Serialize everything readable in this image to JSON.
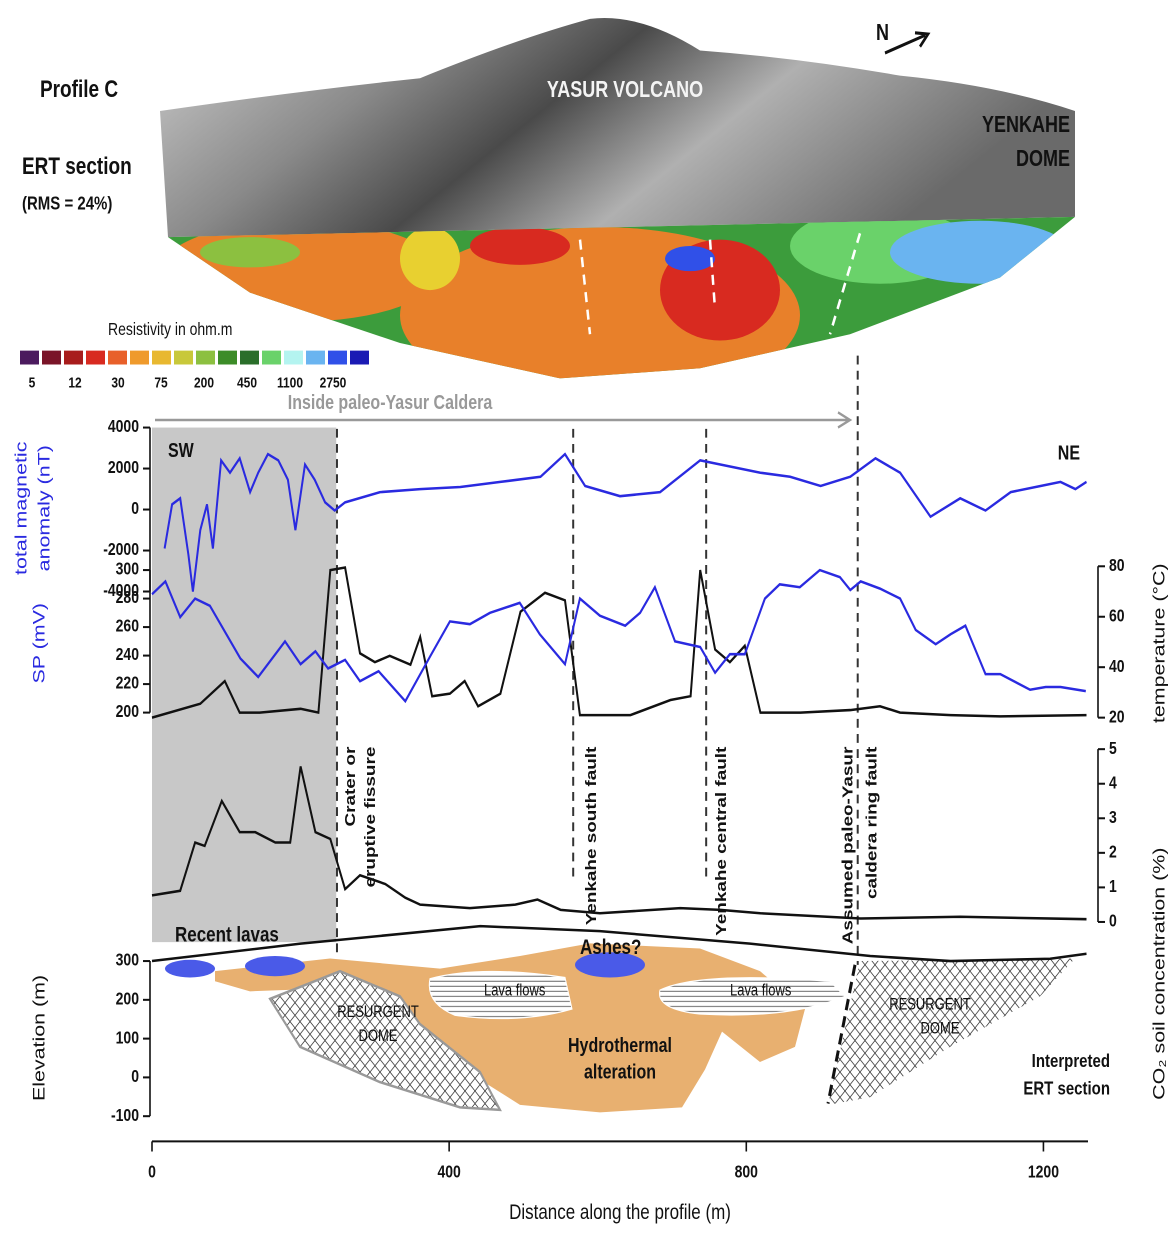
{
  "header": {
    "profile": "Profile C",
    "ert_section": "ERT section",
    "rms": "(RMS = 24%)",
    "volcano": "YASUR VOLCANO",
    "dome": [
      "YENKAHE",
      "DOME"
    ],
    "north": "N",
    "caldera": "Inside paleo-Yasur Caldera",
    "sw": "SW",
    "ne": "NE"
  },
  "colorbar": {
    "title": "Resistivity in ohm.m",
    "ticks": [
      5,
      12,
      30,
      75,
      200,
      450,
      1100,
      2750
    ],
    "colors": [
      "#4b1a5e",
      "#7a1428",
      "#a81c1c",
      "#d82a20",
      "#e8602a",
      "#ef9a2c",
      "#e8b830",
      "#c8c83a",
      "#8cc040",
      "#3c8c28",
      "#2a6e2a",
      "#6ad26a",
      "#b4f4f0",
      "#6ab4f0",
      "#3050e8",
      "#1a1ab4"
    ]
  },
  "shaded_region": [
    0,
    248
  ],
  "faults": [
    {
      "x": 249,
      "label": [
        "Crater or",
        "eruptive fissure"
      ]
    },
    {
      "x": 567,
      "label": [
        "Yenkahe south fault"
      ]
    },
    {
      "x": 746,
      "label": [
        "Yenkahe central fault"
      ]
    },
    {
      "x": 950,
      "label": [
        "Assumed paleo-Yasur",
        "caldera ring fault"
      ]
    }
  ],
  "section_labels": {
    "recent_lavas": "Recent lavas",
    "ashes": "Ashes?",
    "lava_flows": [
      "Lava flows",
      "Lava flows"
    ],
    "resurgent_dome": [
      [
        "RESURGENT",
        "DOME"
      ],
      [
        "RESURGENT",
        "DOME"
      ]
    ],
    "alteration": [
      "Hydrothermal",
      "alteration"
    ],
    "interpreted": [
      "Interpreted",
      "ERT section"
    ]
  },
  "chart_data": [
    {
      "type": "line",
      "ylabel": [
        "total magnetic",
        "anomaly (nT)"
      ],
      "axis_side": "left",
      "color": "#2a2ae0",
      "xlim": [
        0,
        1260
      ],
      "ylim": [
        -4000,
        4000
      ],
      "yticks": [
        -4000,
        -2000,
        0,
        2000,
        4000
      ],
      "x": [
        17,
        27,
        38,
        49,
        55,
        65,
        74,
        82,
        93,
        105,
        118,
        132,
        143,
        156,
        170,
        183,
        193,
        206,
        219,
        233,
        246,
        260,
        307,
        361,
        415,
        469,
        523,
        556,
        583,
        630,
        684,
        738,
        765,
        819,
        859,
        900,
        940,
        974,
        1007,
        1048,
        1088,
        1122,
        1156,
        1196,
        1223,
        1243,
        1258
      ],
      "values": [
        -1900,
        250,
        550,
        -2200,
        -4000,
        -1000,
        250,
        -1900,
        2400,
        1800,
        2500,
        850,
        1800,
        2700,
        2400,
        1450,
        -1000,
        2200,
        1450,
        350,
        -50,
        350,
        850,
        1000,
        1100,
        1350,
        1600,
        2700,
        1150,
        650,
        850,
        2400,
        2200,
        1800,
        1600,
        1150,
        1600,
        2500,
        1800,
        -350,
        550,
        -50,
        850,
        1150,
        1350,
        1000,
        1350
      ]
    },
    {
      "type": "line",
      "ylabel": "temperature (°C)",
      "axis_side": "right",
      "color": "#111111",
      "xlim": [
        0,
        1260
      ],
      "ylim": [
        20,
        80
      ],
      "yticks": [
        20,
        40,
        60,
        80
      ],
      "x": [
        0,
        65,
        98,
        118,
        145,
        200,
        224,
        240,
        260,
        280,
        300,
        320,
        348,
        361,
        377,
        401,
        421,
        439,
        469,
        496,
        529,
        556,
        576,
        644,
        698,
        725,
        738,
        758,
        778,
        798,
        819,
        873,
        940,
        980,
        1007,
        1075,
        1142,
        1258
      ],
      "values": [
        20,
        25.5,
        34.5,
        22,
        22,
        23.5,
        22,
        78.5,
        79.5,
        45.5,
        42,
        44.5,
        41,
        52,
        28.5,
        29.5,
        34.5,
        24.5,
        29.5,
        62,
        69.5,
        66.5,
        21,
        21,
        27,
        28.5,
        78.5,
        47,
        42,
        48.5,
        22,
        22,
        23,
        24.5,
        22,
        21,
        20.5,
        21
      ]
    },
    {
      "type": "line",
      "ylabel": "SP (mV)",
      "axis_side": "left",
      "color": "#2a2ae0",
      "xlim": [
        0,
        1260
      ],
      "ylim": [
        200,
        300
      ],
      "yticks": [
        200,
        220,
        240,
        260,
        280,
        300
      ],
      "x": [
        0,
        18,
        38,
        58,
        78,
        119,
        143,
        179,
        200,
        220,
        237,
        260,
        280,
        305,
        341,
        375,
        401,
        428,
        455,
        495,
        522,
        556,
        576,
        603,
        637,
        657,
        677,
        704,
        738,
        758,
        778,
        798,
        825,
        845,
        872,
        899,
        926,
        940,
        954,
        980,
        1007,
        1028,
        1055,
        1075,
        1095,
        1122,
        1142,
        1182,
        1203,
        1223,
        1257
      ],
      "values": [
        283,
        292,
        267,
        280,
        275,
        238,
        225,
        250,
        234,
        243,
        231,
        237,
        222,
        229,
        208,
        240,
        264,
        262,
        270,
        277,
        255,
        234,
        280,
        268,
        261,
        270,
        288,
        250,
        246,
        228,
        241,
        241,
        280,
        290,
        288,
        300,
        295,
        286,
        292,
        287,
        280,
        258,
        248,
        255,
        261,
        227,
        227,
        216,
        218,
        218,
        215
      ]
    },
    {
      "type": "line",
      "ylabel": "CO₂ soil concentration (%)",
      "axis_side": "right",
      "color": "#111111",
      "xlim": [
        0,
        1260
      ],
      "ylim": [
        0,
        5
      ],
      "yticks": [
        0,
        1,
        2,
        3,
        4,
        5
      ],
      "x": [
        0,
        38,
        58,
        71,
        94,
        118,
        139,
        166,
        186,
        200,
        220,
        240,
        260,
        280,
        314,
        341,
        361,
        428,
        489,
        519,
        550,
        603,
        711,
        765,
        819,
        954,
        1088,
        1258
      ],
      "values": [
        0.77,
        0.9,
        2.3,
        2.2,
        3.5,
        2.6,
        2.6,
        2.3,
        2.3,
        4.5,
        2.6,
        2.4,
        0.95,
        1.35,
        1.1,
        0.7,
        0.5,
        0.4,
        0.5,
        0.65,
        0.35,
        0.25,
        0.4,
        0.35,
        0.25,
        0.1,
        0.15,
        0.08
      ]
    },
    {
      "type": "line",
      "ylabel": "Elevation (m)",
      "axis_side": "left",
      "color": "#111111",
      "xlim": [
        0,
        1260
      ],
      "ylim": [
        -100,
        300
      ],
      "yticks": [
        -100,
        0,
        100,
        200,
        300
      ],
      "xticks": [
        0,
        400,
        800,
        1200
      ],
      "xlabel": "Distance along the profile (m)",
      "x": [
        0,
        200,
        442,
        603,
        805,
        967,
        1075,
        1209,
        1258
      ],
      "values": [
        300,
        345,
        390,
        377,
        345,
        313,
        300,
        306,
        319
      ]
    }
  ]
}
